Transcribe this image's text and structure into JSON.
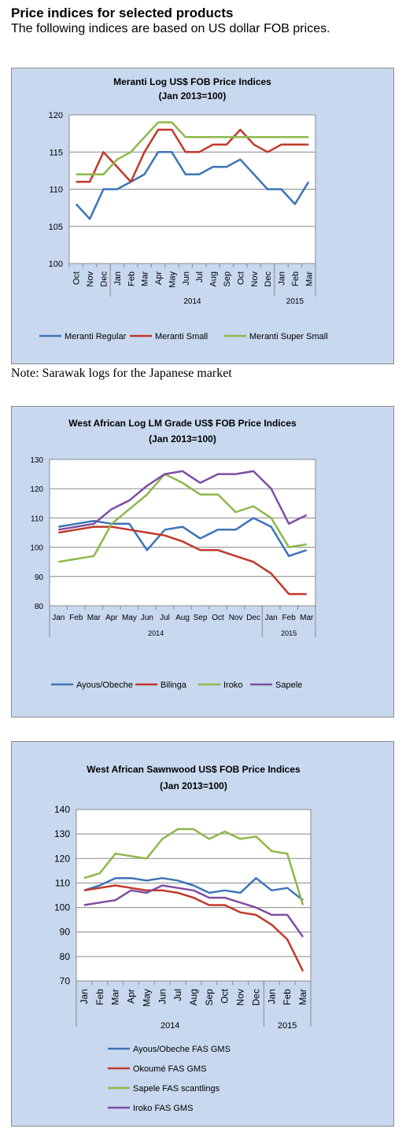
{
  "heading": {
    "title": "Price indices for selected products",
    "subtitle": "The following indices are based on US dollar FOB prices."
  },
  "note": "Note: Sarawak logs for the Japanese market",
  "chart_data": [
    {
      "type": "line",
      "title": "Meranti Log US$ FOB Price Indices",
      "subtitle": "(Jan 2013=100)",
      "categories": [
        "Oct",
        "Nov",
        "Dec",
        "Jan",
        "Feb",
        "Mar",
        "Apr",
        "May",
        "Jun",
        "Jul",
        "Aug",
        "Sep",
        "Oct",
        "Nov",
        "Dec",
        "Jan",
        "Feb",
        "Mar"
      ],
      "groups": [
        {
          "label": "2014",
          "from": 3,
          "to": 14
        },
        {
          "label": "2015",
          "from": 15,
          "to": 17
        }
      ],
      "ylim": [
        100,
        120
      ],
      "yticks": [
        100,
        105,
        110,
        115,
        120
      ],
      "grid": true,
      "legend": "bottom",
      "series": [
        {
          "name": "Meranti Regular",
          "color": "#3c74b8",
          "values": [
            108,
            106,
            110,
            110,
            111,
            112,
            115,
            115,
            112,
            112,
            113,
            113,
            114,
            112,
            110,
            110,
            108,
            111
          ]
        },
        {
          "name": "Meranti Small",
          "color": "#c0392b",
          "values": [
            111,
            111,
            115,
            113,
            111,
            115,
            118,
            118,
            115,
            115,
            116,
            116,
            118,
            116,
            115,
            116,
            116,
            116
          ]
        },
        {
          "name": "Meranti Super Small",
          "color": "#8db84a",
          "values": [
            112,
            112,
            112,
            114,
            115,
            117,
            119,
            119,
            117,
            117,
            117,
            117,
            117,
            117,
            117,
            117,
            117,
            117
          ]
        }
      ]
    },
    {
      "type": "line",
      "title": "West African Log LM Grade US$ FOB Price Indices",
      "subtitle": "(Jan 2013=100)",
      "categories": [
        "Jan",
        "Feb",
        "Mar",
        "Apr",
        "May",
        "Jun",
        "Jul",
        "Aug",
        "Sep",
        "Oct",
        "Nov",
        "Dec",
        "Jan",
        "Feb",
        "Mar"
      ],
      "groups": [
        {
          "label": "2014",
          "from": 0,
          "to": 11
        },
        {
          "label": "2015",
          "from": 12,
          "to": 14
        }
      ],
      "ylim": [
        80,
        130
      ],
      "yticks": [
        80,
        90,
        100,
        110,
        120,
        130
      ],
      "grid": true,
      "legend": "bottom",
      "series": [
        {
          "name": "Ayous/Obeche",
          "color": "#3c74b8",
          "values": [
            107,
            108,
            109,
            108,
            108,
            99,
            106,
            107,
            103,
            106,
            106,
            110,
            107,
            97,
            99
          ]
        },
        {
          "name": "Bilinga",
          "color": "#c0392b",
          "values": [
            105,
            106,
            107,
            107,
            106,
            105,
            104,
            102,
            99,
            99,
            97,
            95,
            91,
            84,
            84
          ]
        },
        {
          "name": "Iroko",
          "color": "#8db84a",
          "values": [
            95,
            96,
            97,
            108,
            113,
            118,
            125,
            122,
            118,
            118,
            112,
            114,
            110,
            100,
            101
          ]
        },
        {
          "name": "Sapele",
          "color": "#7d4ea3",
          "values": [
            106,
            107,
            108,
            113,
            116,
            121,
            125,
            126,
            122,
            125,
            125,
            126,
            120,
            108,
            111
          ]
        }
      ]
    },
    {
      "type": "line",
      "title": "West African Sawnwood US$ FOB Price Indices",
      "subtitle": "(Jan 2013=100)",
      "categories": [
        "Jan",
        "Feb",
        "Mar",
        "Apr",
        "May",
        "Jun",
        "Jul",
        "Aug",
        "Sep",
        "Oct",
        "Nov",
        "Dec",
        "Jan",
        "Feb",
        "Mar"
      ],
      "groups": [
        {
          "label": "2014",
          "from": 0,
          "to": 11
        },
        {
          "label": "2015",
          "from": 12,
          "to": 14
        }
      ],
      "ylim": [
        70,
        140
      ],
      "yticks": [
        70,
        80,
        90,
        100,
        110,
        120,
        130,
        140
      ],
      "grid": true,
      "legend": "bottom",
      "series": [
        {
          "name": "Ayous/Obeche  FAS GMS",
          "color": "#3c74b8",
          "values": [
            107,
            109,
            112,
            112,
            111,
            112,
            111,
            109,
            106,
            107,
            106,
            112,
            107,
            108,
            103
          ]
        },
        {
          "name": "Okoumé  FAS GMS",
          "color": "#c0392b",
          "values": [
            107,
            108,
            109,
            108,
            107,
            107,
            106,
            104,
            101,
            101,
            98,
            97,
            93,
            87,
            74
          ]
        },
        {
          "name": "Sapele FAS scantlings",
          "color": "#8db84a",
          "values": [
            112,
            114,
            122,
            121,
            120,
            128,
            132,
            132,
            128,
            131,
            128,
            129,
            123,
            122,
            101
          ]
        },
        {
          "name": "Iroko FAS GMS",
          "color": "#7d4ea3",
          "values": [
            101,
            102,
            103,
            107,
            106,
            109,
            108,
            107,
            104,
            104,
            102,
            100,
            97,
            97,
            88
          ]
        }
      ]
    }
  ]
}
